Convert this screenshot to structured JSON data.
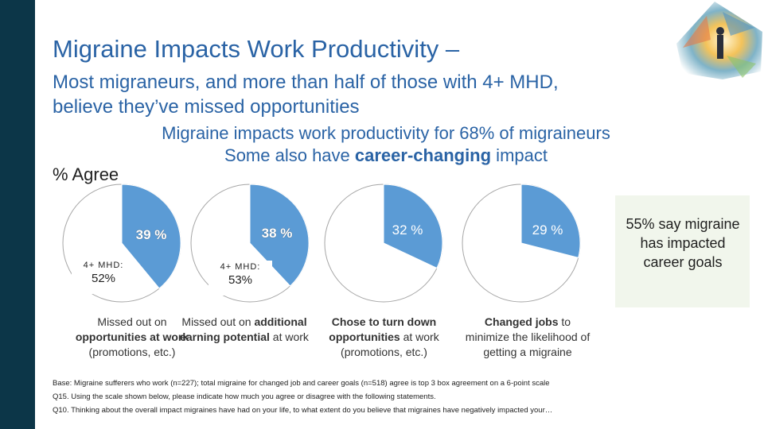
{
  "title": "Migraine Impacts Work Productivity –",
  "subtitle": "Most migraneurs, and more than half of those with 4+ MHD, believe they’ve missed opportunities",
  "headline": {
    "line1": "Migraine impacts work productivity for 68% of migraineurs",
    "line2_pre": "Some also have ",
    "line2_bold": "career-changing",
    "line2_post": " impact"
  },
  "agree_label": "% Agree",
  "callout": "55% say migraine has impacted career goals",
  "colors": {
    "accent": "#2a63a5",
    "slice": "#5b9bd5",
    "sidebar": "#0c3648",
    "callout_bg": "#f1f6ec"
  },
  "chart_data": {
    "type": "pie",
    "unit": "%",
    "charts": [
      {
        "value": 39,
        "label": "39 %",
        "mhd_label": "4+ MHD:",
        "mhd_value": "52%",
        "caption_lines": [
          [
            "Missed out on",
            ""
          ],
          [
            "opportunities at work",
            ""
          ],
          [
            "(promotions, etc.)",
            ""
          ]
        ]
      },
      {
        "value": 38,
        "label": "38 %",
        "mhd_label": "4+ MHD:",
        "mhd_value": "53%",
        "caption_lines": [
          [
            "Missed out on ",
            "additional"
          ],
          [
            "earning potential",
            " at work"
          ],
          [
            "",
            ""
          ]
        ]
      },
      {
        "value": 32,
        "label": "32 %",
        "caption_lines": [
          [
            "Chose to turn down",
            ""
          ],
          [
            "opportunities",
            " at work"
          ],
          [
            "(promotions, etc.)",
            ""
          ]
        ]
      },
      {
        "value": 29,
        "label": "29 %",
        "caption_lines": [
          [
            "Changed jobs",
            " to"
          ],
          [
            "minimize the likelihood of",
            ""
          ],
          [
            "getting a migraine",
            ""
          ]
        ]
      }
    ]
  },
  "base_lines": [
    "Base: Migraine sufferers who work (n=227); total migraine for changed job and career goals (n=518) agree is top 3 box agreement on a 6-point scale",
    "Q15. Using the scale shown below, please indicate how much you agree or disagree with the following statements.",
    "Q10. Thinking about the overall impact migraines have had on your life, to what extent do you believe that migraines have negatively impacted your…"
  ]
}
